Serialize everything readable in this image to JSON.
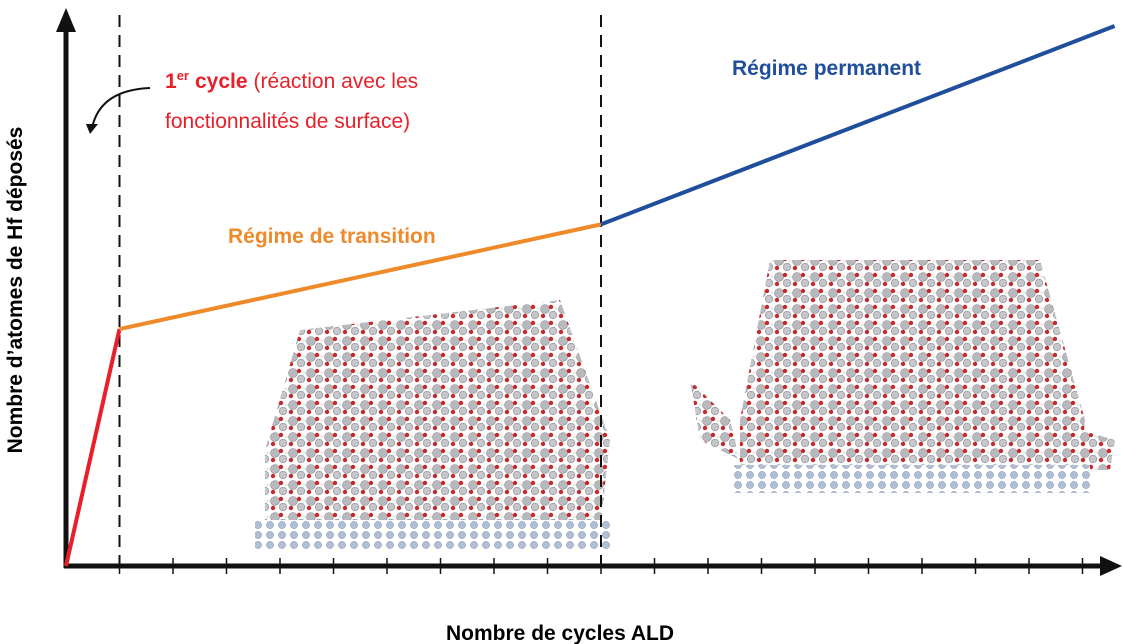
{
  "chart_data": {
    "type": "line",
    "x_label": "Nombre de cycles ALD",
    "y_label": "Nombre d’atomes de Hf déposés",
    "xlim": [
      0,
      19.5
    ],
    "ylim": [
      0,
      100
    ],
    "xticks": [
      1,
      2,
      3,
      4,
      5,
      6,
      7,
      8,
      9,
      10,
      11,
      12,
      13,
      14,
      15,
      16,
      17,
      18,
      19
    ],
    "vlines": [
      1,
      10
    ],
    "series": [
      {
        "color": "#e8202a",
        "x": [
          0,
          1
        ],
        "values": [
          0,
          43
        ]
      },
      {
        "color": "#ef8a2a",
        "x": [
          1,
          10
        ],
        "values": [
          43,
          62
        ]
      },
      {
        "color": "#1f4e9c",
        "x": [
          10,
          19.6
        ],
        "values": [
          62,
          98
        ]
      }
    ],
    "annotations": {
      "first_cycle": {
        "number": "1",
        "superscript": "er",
        "bold": "cycle",
        "line1": "(réaction avec les",
        "line2": "fonctionnalités de surface)",
        "color": "#e8202a"
      },
      "transition": {
        "text": "Régime de transition",
        "color": "#ef8a2a"
      },
      "permanent": {
        "text": "Régime permanent",
        "color": "#1f4e9c"
      }
    }
  }
}
